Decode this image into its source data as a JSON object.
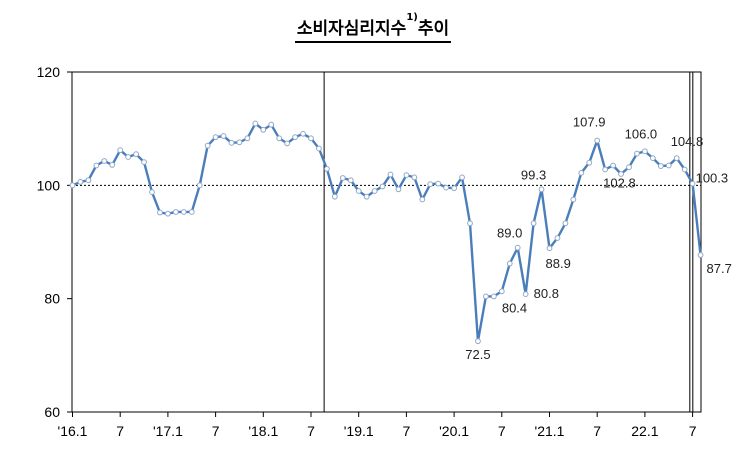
{
  "title_main": "소비자심리지수",
  "title_sup": "1)",
  "title_tail": "추이",
  "chart_data": {
    "type": "line",
    "title": "소비자심리지수1)추이",
    "xlabel": "",
    "ylabel": "",
    "ylim": [
      60,
      120
    ],
    "yticks": [
      "60",
      "80",
      "100",
      "120"
    ],
    "xtick_labels": [
      "'16.1",
      "7",
      "'17.1",
      "7",
      "'18.1",
      "7",
      "'19.1",
      "7",
      "'20.1",
      "7",
      "'21.1",
      "7",
      "22.1",
      "7"
    ],
    "reference_line": 100,
    "grid": false,
    "series": [
      {
        "name": "",
        "color": "#4a7ebb",
        "values": [
          100.0,
          100.6,
          100.9,
          103.5,
          104.3,
          103.6,
          106.2,
          105.0,
          105.5,
          104.1,
          98.8,
          95.2,
          95.0,
          95.3,
          95.3,
          95.3,
          100.0,
          107.0,
          108.5,
          108.7,
          107.5,
          107.6,
          108.3,
          110.9,
          109.8,
          110.7,
          108.3,
          107.4,
          108.5,
          109.1,
          108.3,
          106.5,
          102.9,
          98.0,
          101.3,
          100.9,
          99.0,
          98.0,
          99.0,
          99.8,
          101.9,
          99.3,
          101.8,
          101.4,
          97.5,
          100.2,
          100.3,
          99.6,
          99.5,
          101.4,
          93.3,
          72.5,
          80.4,
          80.4,
          81.3,
          86.2,
          89.0,
          80.8,
          93.3,
          99.3,
          88.9,
          90.7,
          93.3,
          97.5,
          102.2,
          104.0,
          107.9,
          102.8,
          103.5,
          102.0,
          103.2,
          105.6,
          106.0,
          104.8,
          103.4,
          103.5,
          104.8,
          102.8,
          100.3,
          87.7
        ]
      }
    ],
    "annotations": [
      {
        "label": "72.5",
        "index": 51
      },
      {
        "label": "80.4",
        "index": 53
      },
      {
        "label": "89.0",
        "index": 56
      },
      {
        "label": "80.8",
        "index": 57
      },
      {
        "label": "99.3",
        "index": 59
      },
      {
        "label": "88.9",
        "index": 60
      },
      {
        "label": "107.9",
        "index": 66
      },
      {
        "label": "102.8",
        "index": 67
      },
      {
        "label": "106.0",
        "index": 72
      },
      {
        "label": "104.8",
        "index": 76
      },
      {
        "label": "100.3",
        "index": 78
      },
      {
        "label": "87.7",
        "index": 79
      }
    ],
    "vertical_separators_after_index": [
      32,
      78
    ]
  }
}
